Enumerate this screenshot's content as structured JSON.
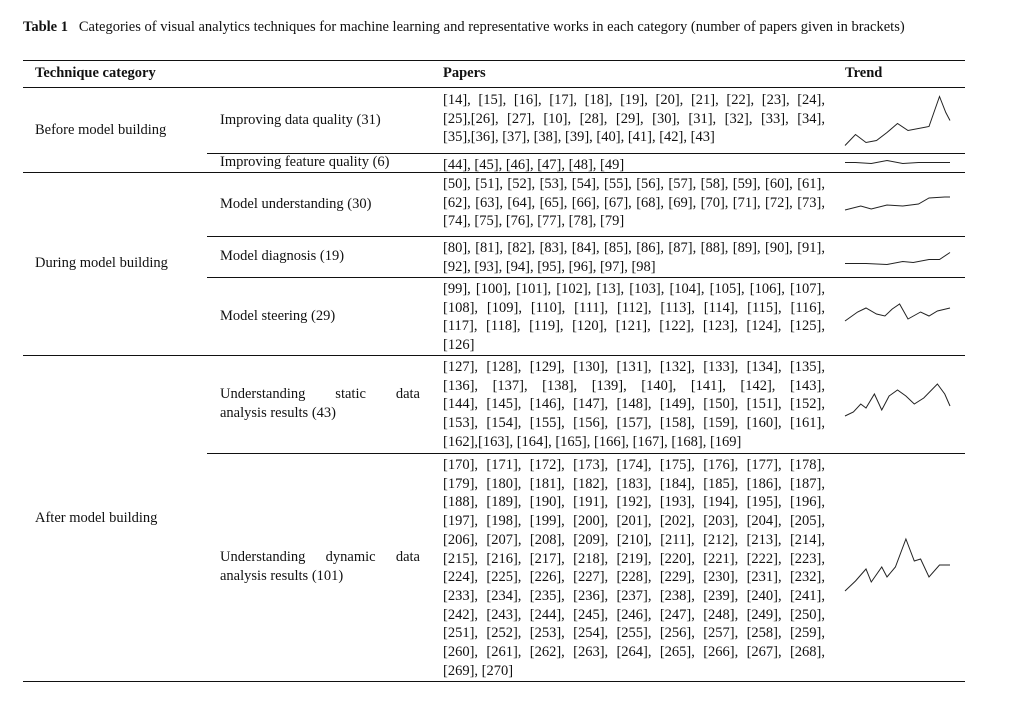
{
  "caption": {
    "label": "Table 1",
    "text": "Categories of visual analytics techniques for machine learning and representative works in each category (number of papers given in brackets)"
  },
  "table": {
    "headers": [
      "Technique category",
      "Papers",
      "Trend"
    ],
    "groups": [
      {
        "category": "Before model building",
        "rows": [
          {
            "subcategory": [
              "Improving data quality (31)"
            ],
            "papers": [
              "[14], [15], [16], [17], [18], [19], [20], [21], [22], [23], [24],",
              "[25],[26], [27], [10], [28], [29], [30], [31], [32], [33], [34],",
              "[35],[36], [37], [38], [39], [40], [41], [42], [43]"
            ]
          },
          {
            "subcategory": [
              "Improving feature quality (6)"
            ],
            "papers": [
              "[44], [45], [46], [47], [48], [49]"
            ]
          }
        ]
      },
      {
        "category": "During model building",
        "rows": [
          {
            "subcategory": [
              "Model understanding (30)"
            ],
            "papers": [
              "[50], [51], [52], [53], [54], [55], [56], [57], [58], [59], [60], [61],",
              "[62], [63], [64], [65], [66], [67], [68], [69], [70], [71], [72], [73],",
              "[74], [75], [76], [77], [78], [79]"
            ]
          },
          {
            "subcategory": [
              "Model diagnosis (19)"
            ],
            "papers": [
              "[80], [81], [82], [83], [84], [85], [86], [87], [88], [89], [90], [91],",
              "[92], [93], [94], [95], [96], [97], [98]"
            ]
          },
          {
            "subcategory": [
              "Model steering (29)"
            ],
            "papers": [
              "[99], [100], [101], [102], [13], [103], [104], [105], [106], [107],",
              "[108], [109], [110], [111], [112], [113], [114], [115], [116],",
              "[117], [118], [119], [120], [121], [122], [123], [124], [125],",
              "[126]"
            ]
          }
        ]
      },
      {
        "category": "After model building",
        "rows": [
          {
            "subcategory": [
              "Understanding static data",
              "analysis results (43)"
            ],
            "papers": [
              "[127], [128], [129], [130], [131], [132], [133], [134], [135],",
              "[136], [137], [138], [139], [140], [141], [142], [143],",
              "[144], [145], [146], [147], [148], [149], [150], [151], [152],",
              "[153], [154], [155], [156], [157], [158], [159], [160], [161],",
              "[162],[163], [164], [165], [166], [167], [168], [169]"
            ]
          },
          {
            "subcategory": [
              "Understanding dynamic data",
              "analysis results (101)"
            ],
            "papers": [
              "[170], [171], [172], [173], [174], [175], [176], [177], [178],",
              "[179], [180], [181], [182], [183], [184], [185], [186], [187],",
              "[188], [189], [190], [191], [192], [193], [194], [195], [196],",
              "[197], [198], [199], [200], [201], [202], [203], [204], [205],",
              "[206], [207], [208], [209], [210], [211], [212], [213], [214],",
              "[215], [216], [217], [218], [219], [220], [221], [222], [223],",
              "[224], [225], [226], [227], [228], [229], [230], [231], [232],",
              "[233], [234], [235], [236], [237], [238], [239], [240], [241],",
              "[242], [243], [244], [245], [246], [247], [248], [249], [250],",
              "[251], [252], [253], [254], [255], [256], [257], [258], [259],",
              "[260], [261], [262], [263], [264], [265], [266], [267], [268],",
              "[269], [270]"
            ]
          }
        ]
      }
    ]
  }
}
